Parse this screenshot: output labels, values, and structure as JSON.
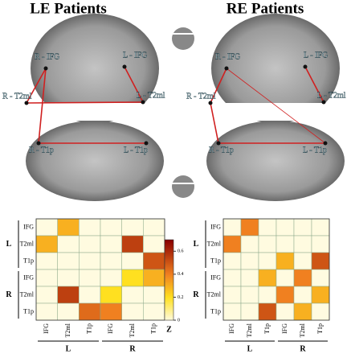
{
  "panels": [
    {
      "title": "LE Patients",
      "nodes": [
        "R - IFG",
        "L - IFG",
        "R - T2ml",
        "L - T2ml",
        "R - T1p",
        "L - T1p"
      ]
    },
    {
      "title": "RE Patients",
      "nodes": [
        "R - IFG",
        "L - IFG",
        "R - T2ml",
        "L - T2ml",
        "R - T1p",
        "L - T1p"
      ]
    }
  ],
  "chart_data": [
    {
      "type": "heatmap",
      "rows": [
        "IFG",
        "T2ml",
        "T1p",
        "IFG",
        "T2ml",
        "T1p"
      ],
      "columns": [
        "IFG",
        "T2ml",
        "T1p",
        "IFG",
        "T2ml",
        "T1p"
      ],
      "groups": [
        "L",
        "R"
      ],
      "z": [
        [
          0,
          0.3,
          0,
          0,
          0,
          0
        ],
        [
          0.3,
          0,
          0,
          0,
          0.55,
          0
        ],
        [
          0,
          0,
          0,
          0,
          0,
          0.5
        ],
        [
          0,
          0,
          0,
          0,
          0.2,
          0.3
        ],
        [
          0,
          0.55,
          0,
          0.2,
          0,
          0
        ],
        [
          0,
          0,
          0.45,
          0.4,
          0,
          0
        ]
      ]
    },
    {
      "type": "heatmap",
      "rows": [
        "IFG",
        "T2ml",
        "T1p",
        "IFG",
        "T2ml",
        "T1p"
      ],
      "columns": [
        "IFG",
        "T2ml",
        "T1p",
        "IFG",
        "T2ml",
        "T1p"
      ],
      "groups": [
        "L",
        "R"
      ],
      "z": [
        [
          0,
          0.4,
          0,
          0,
          0,
          0
        ],
        [
          0.4,
          0,
          0,
          0,
          0,
          0
        ],
        [
          0,
          0,
          0,
          0.3,
          0,
          0.5
        ],
        [
          0,
          0,
          0.3,
          0,
          0.4,
          0
        ],
        [
          0,
          0,
          0,
          0.4,
          0,
          0.3
        ],
        [
          0,
          0,
          0.5,
          0,
          0.3,
          0
        ]
      ]
    }
  ],
  "colorbar": {
    "label": "Z",
    "zlim": [
      0,
      0.7
    ],
    "ticks": [
      0,
      0.2,
      0.4,
      0.6
    ],
    "colorscale": [
      [
        0,
        "#fffbe0"
      ],
      [
        0.2,
        "#ffe020"
      ],
      [
        0.4,
        "#f08020"
      ],
      [
        0.7,
        "#8a0000"
      ]
    ]
  }
}
